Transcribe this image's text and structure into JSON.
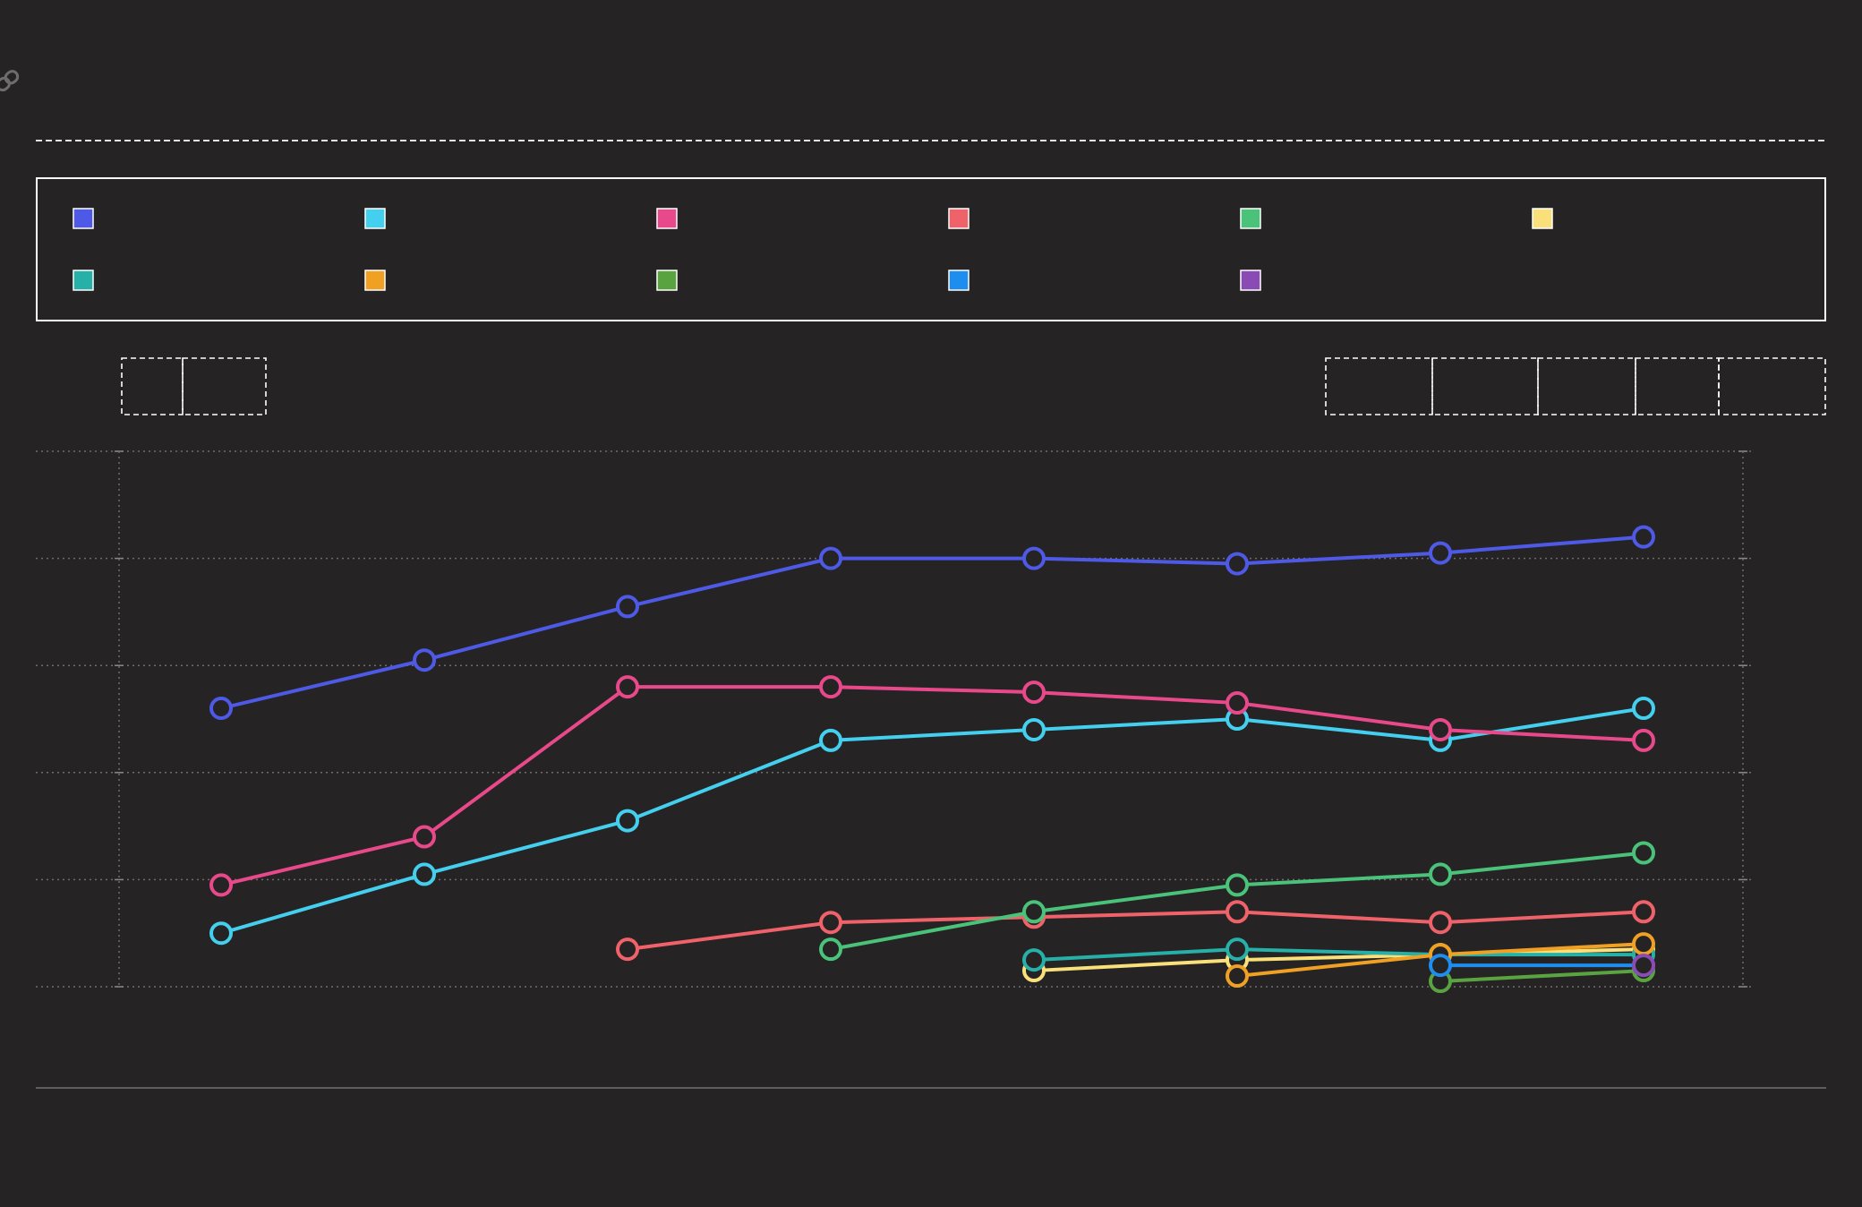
{
  "chart_data": {
    "type": "line",
    "title": "",
    "xlabel": "",
    "ylabel": "",
    "x": [
      1,
      2,
      3,
      4,
      5,
      6,
      7,
      8
    ],
    "ylim": [
      0,
      50
    ],
    "y_gridlines": [
      0,
      10,
      20,
      30,
      40,
      50
    ],
    "grid": true,
    "legend_position": "top",
    "series": [
      {
        "color": "#4e5ae6",
        "values": [
          26,
          30.5,
          35.5,
          40,
          40,
          39.5,
          40.5,
          42
        ]
      },
      {
        "color": "#45cfee",
        "values": [
          5,
          10.5,
          15.5,
          23,
          24,
          25,
          23,
          26
        ]
      },
      {
        "color": "#e8498a",
        "values": [
          9.5,
          14,
          28,
          28,
          27.5,
          26.5,
          24,
          23
        ]
      },
      {
        "color": "#f0626a",
        "values": [
          null,
          null,
          3.5,
          6,
          6.5,
          7,
          6,
          7
        ]
      },
      {
        "color": "#4ac27a",
        "values": [
          null,
          null,
          null,
          3.5,
          7,
          9.5,
          10.5,
          12.5
        ]
      },
      {
        "color": "#f9e07a",
        "values": [
          null,
          null,
          null,
          null,
          1.5,
          2.5,
          3,
          3.5
        ]
      },
      {
        "color": "#27b0a8",
        "values": [
          null,
          null,
          null,
          null,
          2.5,
          3.5,
          3,
          3
        ]
      },
      {
        "color": "#f0a023",
        "values": [
          null,
          null,
          null,
          null,
          null,
          1,
          3,
          4
        ]
      },
      {
        "color": "#59a340",
        "values": [
          null,
          null,
          null,
          null,
          null,
          null,
          0.5,
          1.5
        ]
      },
      {
        "color": "#1d8ef0",
        "values": [
          null,
          null,
          null,
          null,
          null,
          null,
          2,
          2
        ]
      },
      {
        "color": "#8a4bb5",
        "values": [
          null,
          null,
          null,
          null,
          null,
          null,
          null,
          2
        ]
      }
    ]
  }
}
